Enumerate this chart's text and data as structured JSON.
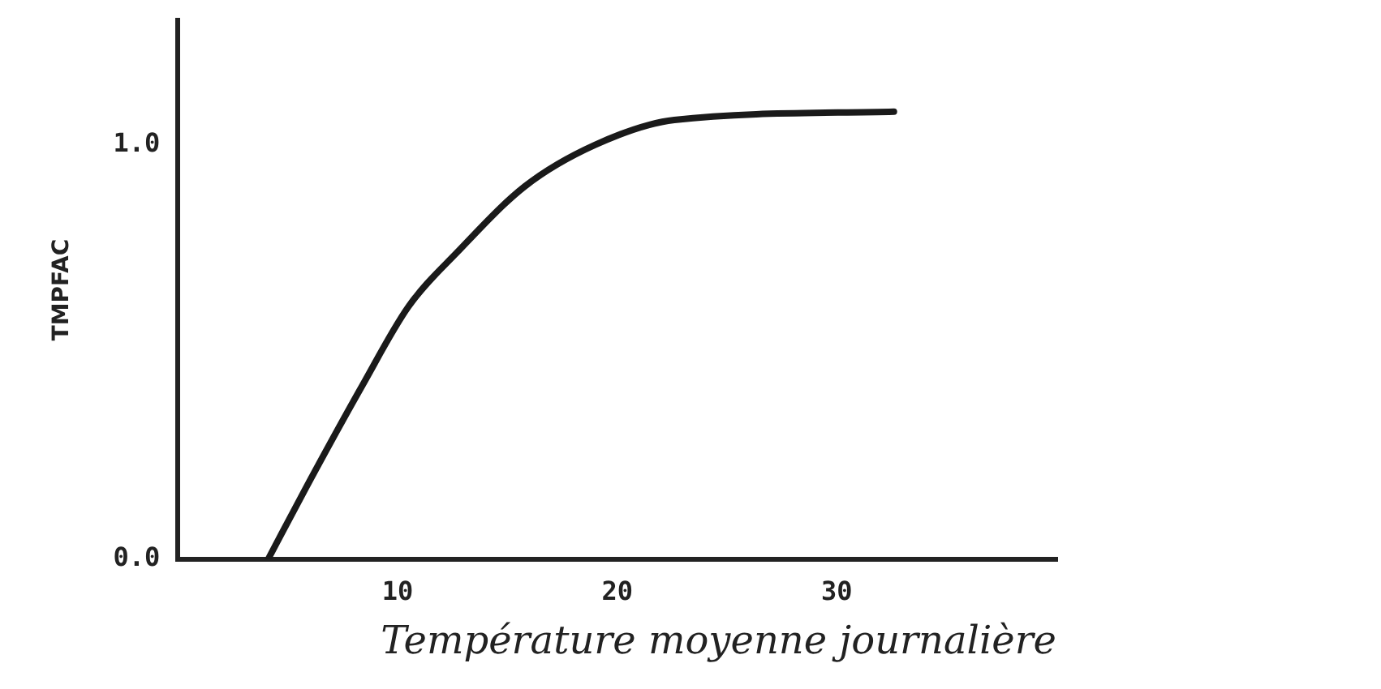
{
  "chart_data": {
    "type": "line",
    "xlabel": "Température moyenne journalière",
    "ylabel": "TMPFAC",
    "x": [
      4.1,
      5.8,
      8.4,
      10.5,
      12.7,
      15.8,
      19,
      22.6,
      32.6
    ],
    "series": [
      {
        "color": "#1a1a1a",
        "values": [
          0,
          0.17,
          0.42,
          0.61,
          0.74,
          0.9,
          1.0,
          1.06,
          1.08
        ]
      }
    ],
    "xlim": [
      0,
      40
    ],
    "xticks": [
      10,
      20,
      30
    ],
    "ylim": [
      0,
      1.3
    ],
    "yticks": [
      {
        "value": 0,
        "label": "0.0"
      },
      {
        "value": 1,
        "label": "1.0"
      }
    ],
    "grid": false,
    "legend": false,
    "marker": "none",
    "line_style": "solid"
  }
}
